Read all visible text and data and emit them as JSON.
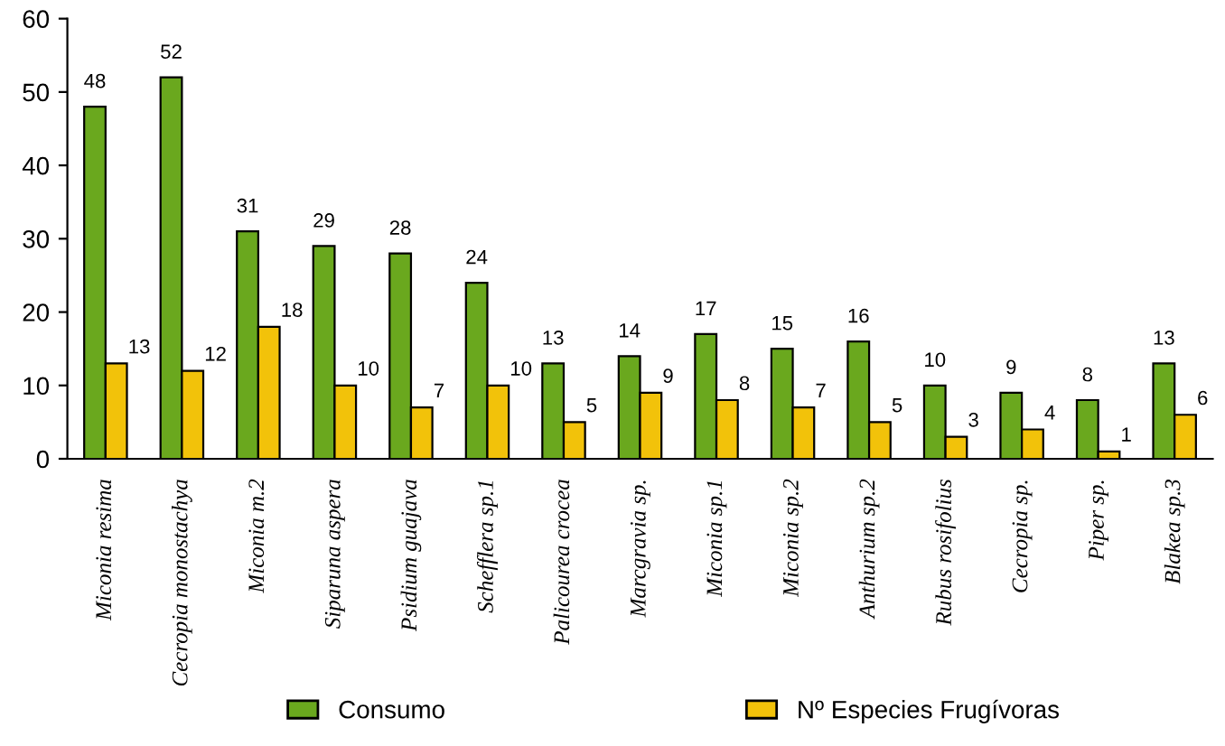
{
  "chart_data": {
    "type": "bar",
    "categories": [
      "Miconia resima",
      "Cecropia monostachya",
      "Miconia m.2",
      "Siparuna aspera",
      "Psidium guajava",
      "Schefflera sp.1",
      "Palicourea crocea",
      "Marcgravia sp.",
      "Miconia sp.1",
      "Miconia sp.2",
      "Anthurium sp.2",
      "Rubus rosifolius",
      "Cecropia sp.",
      "Piper sp.",
      "Blakea sp.3"
    ],
    "series": [
      {
        "name": "Consumo",
        "color": "#6aa81e",
        "values": [
          48,
          52,
          31,
          29,
          28,
          24,
          13,
          14,
          17,
          15,
          16,
          10,
          9,
          8,
          13
        ]
      },
      {
        "name": "Nº Especies Frugívoras",
        "color": "#f2c20a",
        "values": [
          13,
          12,
          18,
          10,
          7,
          10,
          5,
          9,
          8,
          7,
          5,
          3,
          4,
          1,
          6
        ]
      }
    ],
    "ylim": [
      0,
      60
    ],
    "yticks": [
      0,
      10,
      20,
      30,
      40,
      50,
      60
    ],
    "grid": false,
    "legend": "bottom",
    "data_labels": true
  }
}
